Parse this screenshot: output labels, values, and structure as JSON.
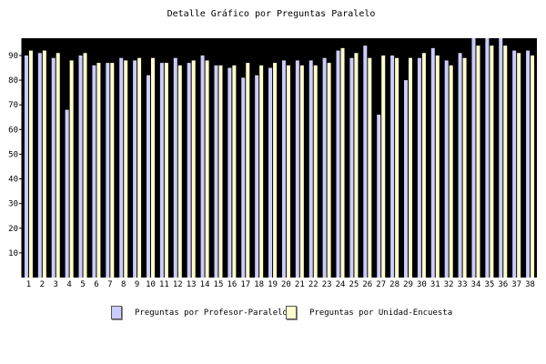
{
  "chart_data": {
    "type": "bar",
    "title": "Detalle Gráfico por Preguntas Paralelo",
    "xlabel": "",
    "ylabel": "",
    "ylim": [
      0,
      97
    ],
    "yticks": [
      10,
      20,
      30,
      40,
      50,
      60,
      70,
      80,
      90
    ],
    "categories": [
      "1",
      "2",
      "3",
      "4",
      "5",
      "6",
      "7",
      "8",
      "9",
      "10",
      "11",
      "12",
      "13",
      "14",
      "15",
      "16",
      "17",
      "18",
      "19",
      "20",
      "21",
      "22",
      "23",
      "24",
      "25",
      "26",
      "27",
      "28",
      "29",
      "30",
      "31",
      "32",
      "33",
      "34",
      "35",
      "36",
      "37",
      "38"
    ],
    "series": [
      {
        "name": "Preguntas por Profesor-Paralelo",
        "color": "#ccccff",
        "values": [
          90,
          91,
          89,
          68,
          90,
          86,
          87,
          89,
          88,
          82,
          87,
          89,
          87,
          90,
          86,
          85,
          81,
          82,
          85,
          88,
          88,
          88,
          89,
          92,
          89,
          94,
          66,
          90,
          80,
          89,
          93,
          88,
          91,
          97,
          97,
          97,
          92,
          92
        ]
      },
      {
        "name": "Preguntas por Unidad-Encuesta",
        "color": "#ffffcc",
        "values": [
          92,
          92,
          91,
          88,
          91,
          87,
          87,
          88,
          89,
          89,
          87,
          86,
          88,
          88,
          86,
          86,
          87,
          86,
          87,
          86,
          86,
          86,
          87,
          93,
          91,
          89,
          90,
          89,
          89,
          91,
          90,
          86,
          89,
          94,
          94,
          94,
          91,
          90
        ]
      }
    ],
    "legend_position": "bottom",
    "background": "#000000"
  }
}
